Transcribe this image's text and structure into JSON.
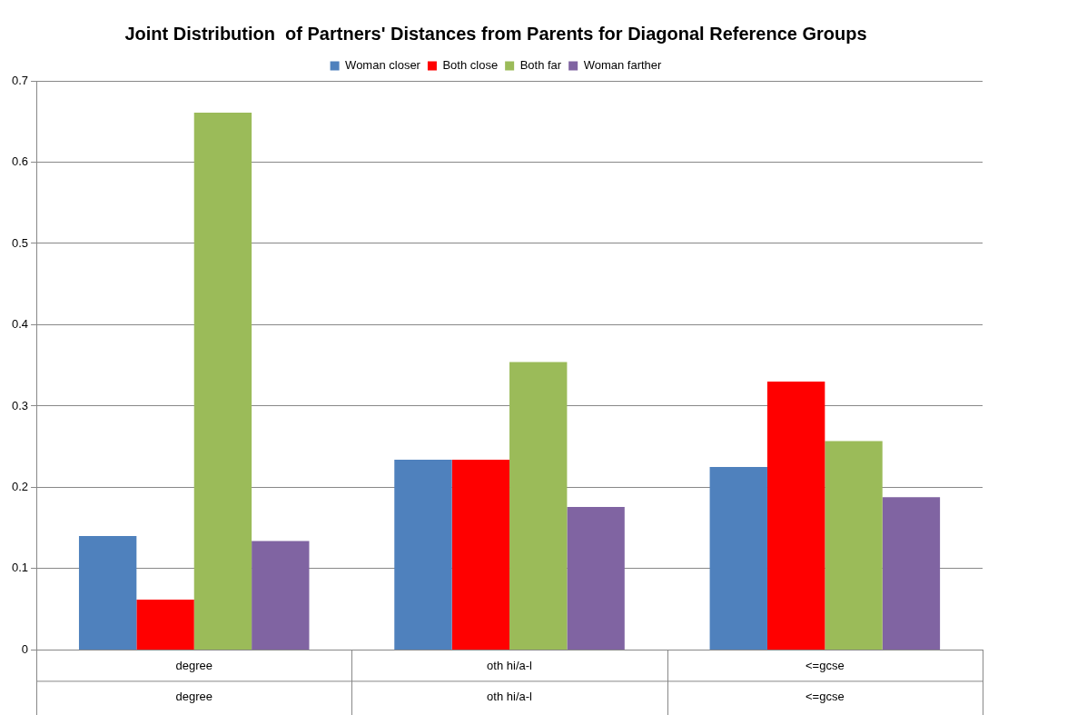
{
  "chart_data": {
    "type": "bar",
    "title": "Joint Distribution  of Partners' Distances from Parents for Diagonal Reference Groups",
    "categories": [
      "degree",
      "oth hi/a-l",
      "<=gcse"
    ],
    "series": [
      {
        "name": "Woman closer",
        "color": "#4f81bd",
        "values": [
          0.14,
          0.234,
          0.225
        ]
      },
      {
        "name": "Both close",
        "color": "#ff0000",
        "values": [
          0.062,
          0.234,
          0.33
        ]
      },
      {
        "name": "Both far",
        "color": "#9bbb59",
        "values": [
          0.661,
          0.354,
          0.257
        ]
      },
      {
        "name": "Woman farther",
        "color": "#8064a2",
        "values": [
          0.134,
          0.176,
          0.188
        ]
      }
    ],
    "annotations": [
      "degree",
      "oth hi/a-l",
      "<=gcse"
    ],
    "ylim": [
      0,
      0.7
    ],
    "yticks": [
      0,
      0.1,
      0.2,
      0.3,
      0.4,
      0.5,
      0.6,
      0.7
    ],
    "grid": "y",
    "legend": "top"
  }
}
